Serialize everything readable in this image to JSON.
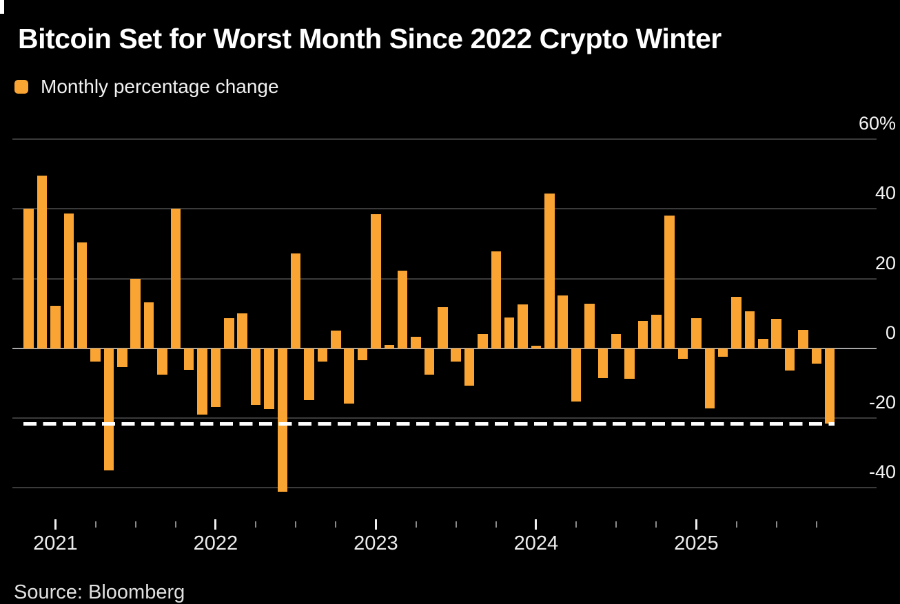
{
  "header": {
    "title": "Bitcoin Set for Worst Month Since 2022 Crypto Winter",
    "legend_label": "Monthly percentage change"
  },
  "source_line": "Source: Bloomberg",
  "colors": {
    "background": "#000000",
    "bar_orange": "#F9A433",
    "gridline": "#3b3b3b",
    "zero_line": "#a8a8a8",
    "reference_line_white": "#ffffff",
    "text_white": "#f2f2f2"
  },
  "chart_data": {
    "type": "bar",
    "title": "Bitcoin Set for Worst Month Since 2022 Crypto Winter",
    "series_name": "Monthly percentage change",
    "unit": "%",
    "ylabel": "",
    "xlabel": "",
    "grid": "horizontal",
    "legend_position": "top-left",
    "y_axis_side": "right",
    "ylim": [
      -46,
      62
    ],
    "y_ticks": {
      "labels": [
        "60%",
        "40",
        "20",
        "0",
        "-20",
        "-40"
      ],
      "values": [
        60,
        40,
        20,
        0,
        -20,
        -40
      ]
    },
    "x_year_labels": [
      "2021",
      "2022",
      "2023",
      "2024",
      "2025"
    ],
    "reference_line": {
      "value": -21.6,
      "style": "dashed"
    },
    "x": [
      "Nov 2020",
      "Dec 2020",
      "Jan 2021",
      "Feb 2021",
      "Mar 2021",
      "Apr 2021",
      "May 2021",
      "Jun 2021",
      "Jul 2021",
      "Aug 2021",
      "Sep 2021",
      "Oct 2021",
      "Nov 2021",
      "Dec 2021",
      "Jan 2022",
      "Feb 2022",
      "Mar 2022",
      "Apr 2022",
      "May 2022",
      "Jun 2022",
      "Jul 2022",
      "Aug 2022",
      "Sep 2022",
      "Oct 2022",
      "Nov 2022",
      "Dec 2022",
      "Jan 2023",
      "Feb 2023",
      "Mar 2023",
      "Apr 2023",
      "May 2023",
      "Jun 2023",
      "Jul 2023",
      "Aug 2023",
      "Sep 2023",
      "Oct 2023",
      "Nov 2023",
      "Dec 2023",
      "Jan 2024",
      "Feb 2024",
      "Mar 2024",
      "Apr 2024",
      "May 2024",
      "Jun 2024",
      "Jul 2024",
      "Aug 2024",
      "Sep 2024",
      "Oct 2024",
      "Nov 2024",
      "Dec 2024",
      "Jan 2025",
      "Feb 2025",
      "Mar 2025",
      "Apr 2025",
      "May 2025",
      "Jun 2025",
      "Jul 2025",
      "Aug 2025",
      "Sep 2025",
      "Oct 2025",
      "Nov 2025"
    ],
    "values": [
      40.0,
      49.5,
      12.3,
      38.7,
      30.3,
      -3.7,
      -35.0,
      -5.4,
      20.0,
      13.2,
      -7.5,
      40.0,
      -6.2,
      -18.9,
      -16.8,
      8.7,
      10.0,
      -16.3,
      -17.4,
      -41.2,
      27.2,
      -14.9,
      -3.7,
      5.0,
      -15.9,
      -3.3,
      38.5,
      0.9,
      22.3,
      3.3,
      -7.5,
      11.9,
      -3.7,
      -10.7,
      4.1,
      27.7,
      8.8,
      12.5,
      0.7,
      44.4,
      15.1,
      -15.3,
      12.8,
      -8.5,
      4.1,
      -8.8,
      7.9,
      9.6,
      38.1,
      -3.0,
      8.6,
      -17.2,
      -2.4,
      14.7,
      10.7,
      2.7,
      8.4,
      -6.4,
      5.3,
      -4.3,
      -21.6
    ]
  }
}
